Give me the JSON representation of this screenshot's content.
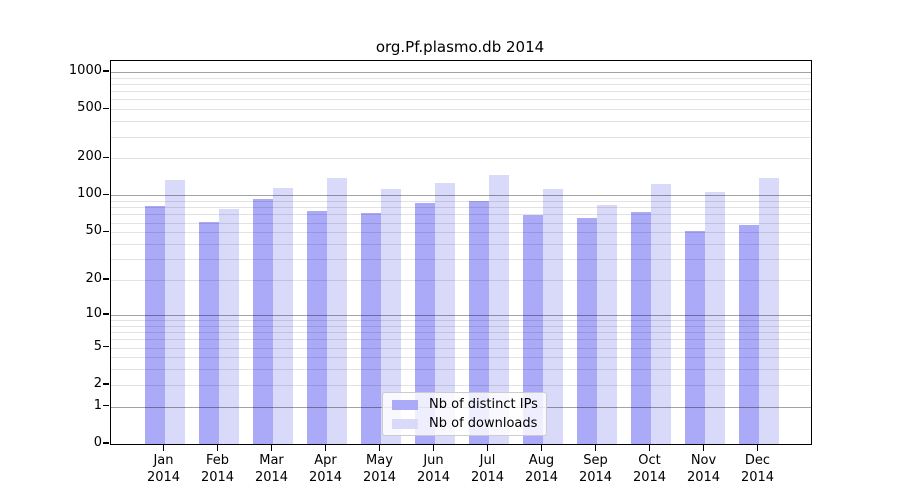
{
  "title": "org.Pf.plasmo.db 2014",
  "colors": {
    "distinct_ips": "#aaaaf8",
    "downloads": "#d9d9fa",
    "major_grid": "rgba(0,0,0,0.36)",
    "minor_grid": "rgba(0,0,0,0.11)",
    "spine": "#000000"
  },
  "legend": {
    "items": [
      {
        "label": "Nb of distinct IPs",
        "series": "distinct_ips"
      },
      {
        "label": "Nb of downloads",
        "series": "downloads"
      }
    ]
  },
  "chart_data": {
    "type": "bar",
    "title": "org.Pf.plasmo.db 2014",
    "categories": [
      "Jan 2014",
      "Feb 2014",
      "Mar 2014",
      "Apr 2014",
      "May 2014",
      "Jun 2014",
      "Jul 2014",
      "Aug 2014",
      "Sep 2014",
      "Oct 2014",
      "Nov 2014",
      "Dec 2014"
    ],
    "series": [
      {
        "name": "Nb of distinct IPs",
        "values": [
          82,
          61,
          94,
          74,
          72,
          87,
          90,
          69,
          65,
          73,
          51,
          57
        ]
      },
      {
        "name": "Nb of downloads",
        "values": [
          134,
          78,
          114,
          138,
          112,
          127,
          146,
          112,
          84,
          125,
          106,
          138
        ]
      }
    ],
    "xlabel": "",
    "ylabel": "",
    "yscale": "log1p",
    "yticks": [
      0,
      1,
      2,
      5,
      10,
      20,
      50,
      100,
      200,
      500,
      1000
    ],
    "major_grid_values": [
      1,
      10,
      100,
      1000
    ],
    "minor_grid_values": [
      2,
      3,
      4,
      5,
      6,
      7,
      8,
      9,
      20,
      30,
      40,
      50,
      60,
      70,
      80,
      90,
      200,
      300,
      400,
      500,
      600,
      700,
      800,
      900
    ],
    "ylim": [
      0,
      1230
    ],
    "grid": true,
    "legend_position": "inside-bottom-center"
  }
}
